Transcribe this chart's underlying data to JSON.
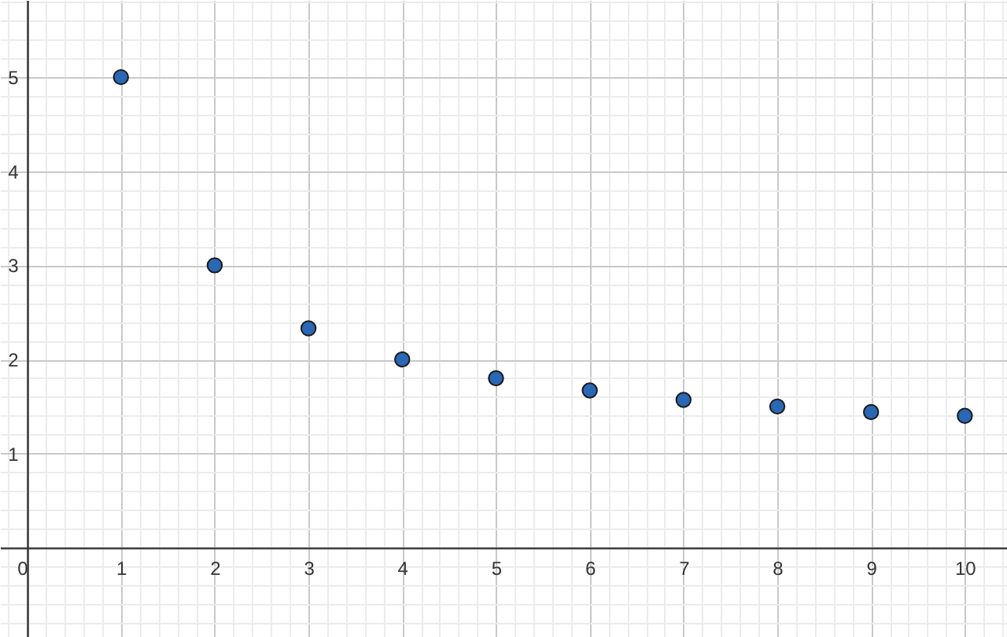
{
  "chart_data": {
    "type": "scatter",
    "x": [
      1,
      2,
      3,
      4,
      5,
      6,
      7,
      8,
      9,
      10
    ],
    "series": [
      {
        "color": "#2a67b4",
        "values": [
          5,
          3,
          2.33,
          2,
          1.8,
          1.67,
          1.57,
          1.5,
          1.44,
          1.4
        ]
      }
    ],
    "xlim": [
      -0.29,
      10.45
    ],
    "ylim": [
      -0.95,
      5.82
    ],
    "xticks": [
      0,
      1,
      2,
      3,
      4,
      5,
      6,
      7,
      8,
      9,
      10
    ],
    "yticks": [
      1,
      2,
      3,
      4,
      5
    ],
    "grid": true,
    "marker": "circle"
  }
}
